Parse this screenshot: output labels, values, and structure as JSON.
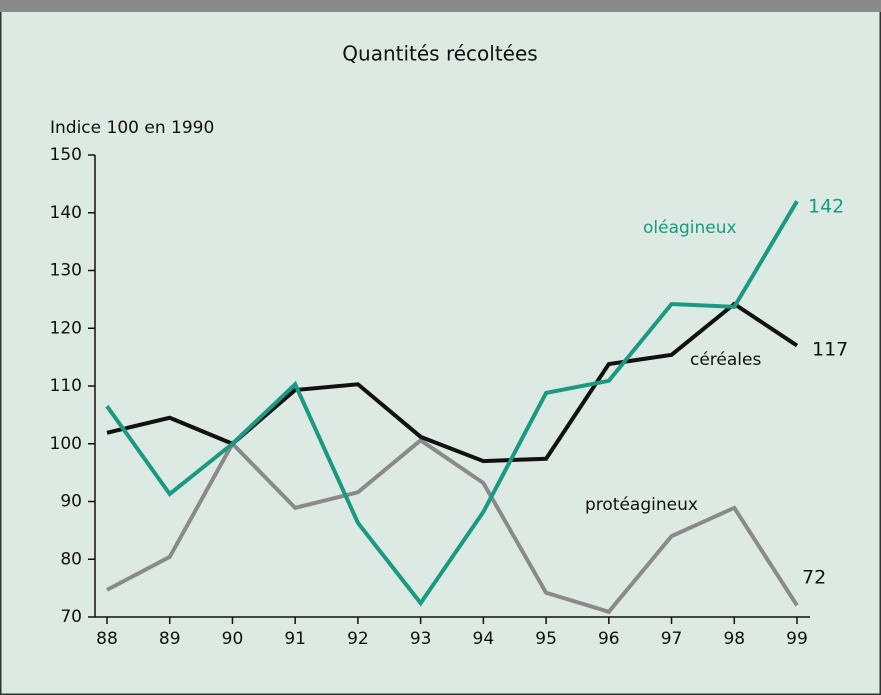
{
  "chart_data": {
    "type": "line",
    "title": "Quantités récoltées",
    "y_label": "Indice 100 en 1990",
    "categories": [
      "88",
      "89",
      "90",
      "91",
      "92",
      "93",
      "94",
      "95",
      "96",
      "97",
      "98",
      "99"
    ],
    "series": [
      {
        "name": "céréales",
        "color": "#111111",
        "values": [
          101.9,
          104.5,
          100,
          109.3,
          110.3,
          101.2,
          97,
          97.4,
          113.8,
          115.4,
          124.2,
          117
        ]
      },
      {
        "name": "oléagineux",
        "color": "#1a9a80",
        "values": [
          106.5,
          91.3,
          100,
          110.3,
          86.3,
          72.4,
          88.2,
          108.8,
          110.9,
          124.2,
          123.7,
          142
        ]
      },
      {
        "name": "protéagineux",
        "color": "#8a8a8a",
        "values": [
          74.7,
          80.4,
          100,
          88.9,
          91.6,
          100.6,
          93.2,
          74.2,
          70.9,
          84,
          88.9,
          72
        ]
      }
    ],
    "ylim": [
      70,
      150
    ],
    "yticks": [
      70,
      80,
      90,
      100,
      110,
      120,
      130,
      140,
      150
    ]
  }
}
